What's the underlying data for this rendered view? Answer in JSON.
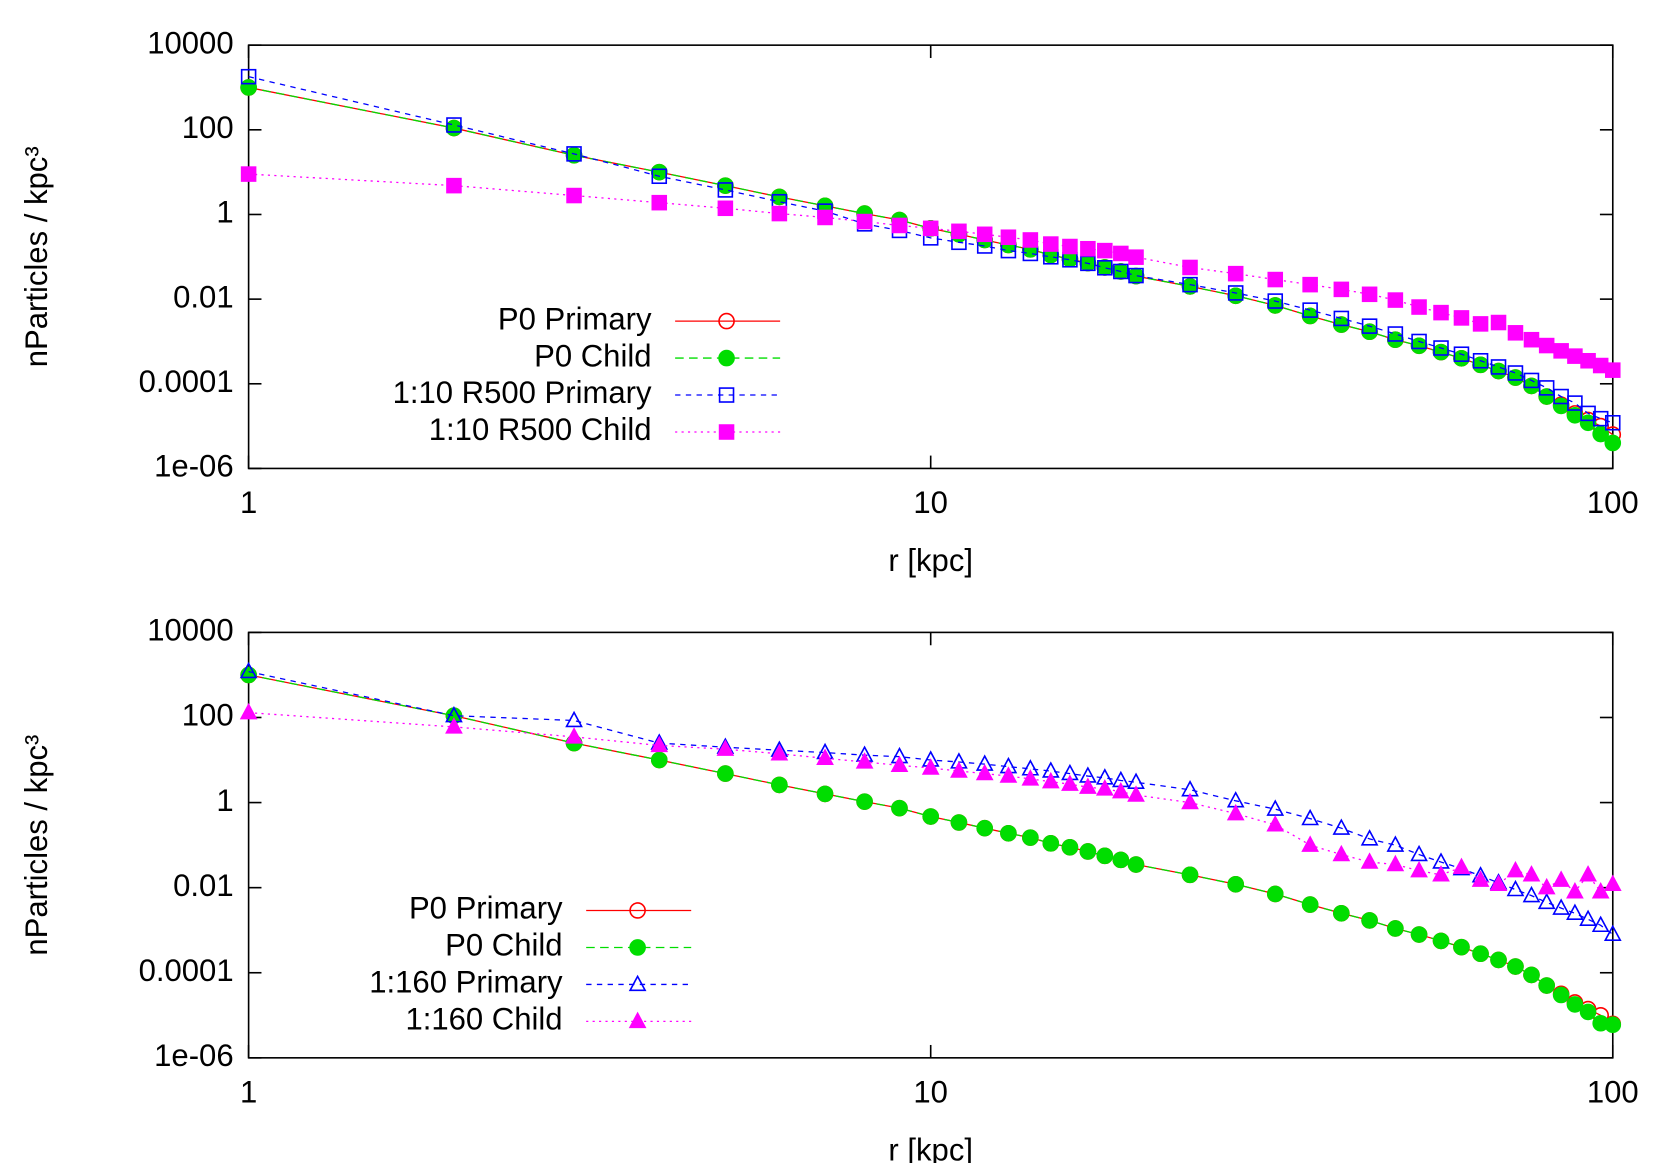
{
  "chart_data": [
    {
      "type": "line",
      "xlabel": "r [kpc]",
      "ylabel": "nParticles / kpc³",
      "xlog": true,
      "ylog": true,
      "legend": "lower left",
      "xlim": [
        1,
        100
      ],
      "xticks": [
        1,
        10,
        100
      ],
      "ylim": [
        1e-06,
        10000
      ],
      "yticks": [
        {
          "value": 1e-06,
          "label": "1e-06"
        },
        0.0001,
        0.01,
        1,
        100,
        10000
      ],
      "x": [
        1,
        2,
        3,
        4,
        5,
        6,
        7,
        8,
        9,
        10,
        11,
        12,
        13,
        14,
        15,
        16,
        17,
        18,
        19,
        20,
        24,
        28,
        32,
        36,
        40,
        44,
        48,
        52,
        56,
        60,
        64,
        68,
        72,
        76,
        80,
        84,
        88,
        92,
        96,
        100
      ],
      "series": [
        {
          "name": "P0 Primary",
          "color": "#ff0000",
          "marker": "circle-open",
          "dash": "solid",
          "values": [
            1000,
            110,
            25,
            10,
            4.8,
            2.6,
            1.6,
            1.05,
            0.74,
            0.47,
            0.34,
            0.25,
            0.19,
            0.15,
            0.11,
            0.089,
            0.071,
            0.056,
            0.045,
            0.035,
            0.02,
            0.012,
            0.0071,
            0.004,
            0.0025,
            0.0017,
            0.0011,
            0.00079,
            0.00056,
            0.0004,
            0.00028,
            0.0002,
            0.00014,
            8.9e-05,
            5e-05,
            3.2e-05,
            2e-05,
            1.4e-05,
            1e-05,
            6.3e-06
          ]
        },
        {
          "name": "P0 Child",
          "color": "#00dd00",
          "marker": "circle-filled",
          "dash": "dashed",
          "values": [
            1000,
            110,
            25,
            10,
            4.8,
            2.6,
            1.6,
            1.05,
            0.74,
            0.47,
            0.34,
            0.25,
            0.19,
            0.15,
            0.11,
            0.089,
            0.071,
            0.056,
            0.045,
            0.035,
            0.02,
            0.012,
            0.0071,
            0.004,
            0.0025,
            0.0017,
            0.0011,
            0.00079,
            0.00056,
            0.0004,
            0.00028,
            0.0002,
            0.00014,
            8.9e-05,
            5e-05,
            3e-05,
            1.8e-05,
            1.2e-05,
            6.5e-06,
            4e-06
          ]
        },
        {
          "name": "1:10 R500 Primary",
          "color": "#0000ff",
          "marker": "square-open",
          "dash": "short-dashed",
          "values": [
            1800,
            130,
            27,
            8,
            3.8,
            2,
            1.2,
            0.6,
            0.42,
            0.28,
            0.22,
            0.18,
            0.14,
            0.12,
            0.1,
            0.085,
            0.07,
            0.055,
            0.045,
            0.036,
            0.022,
            0.014,
            0.009,
            0.0055,
            0.0035,
            0.0023,
            0.0015,
            0.001,
            0.0007,
            0.0005,
            0.00035,
            0.00025,
            0.00018,
            0.00012,
            8e-05,
            5e-05,
            3.5e-05,
            2e-05,
            1.5e-05,
            1.2e-05
          ]
        },
        {
          "name": "1:10 R500 Child",
          "color": "#ff00ff",
          "marker": "square-filled",
          "dash": "dotted",
          "values": [
            9,
            4.8,
            2.8,
            1.9,
            1.4,
            1.05,
            0.85,
            0.68,
            0.55,
            0.47,
            0.4,
            0.34,
            0.29,
            0.25,
            0.2,
            0.175,
            0.155,
            0.14,
            0.12,
            0.098,
            0.056,
            0.04,
            0.029,
            0.022,
            0.017,
            0.013,
            0.0095,
            0.0065,
            0.0048,
            0.0036,
            0.0026,
            0.0028,
            0.0016,
            0.0011,
            0.0008,
            0.0006,
            0.00045,
            0.00035,
            0.00027,
            0.00021
          ]
        }
      ]
    },
    {
      "type": "line",
      "xlabel": "r [kpc]",
      "ylabel": "nParticles / kpc³",
      "xlog": true,
      "ylog": true,
      "legend": "lower left",
      "xlim": [
        1,
        100
      ],
      "xticks": [
        1,
        10,
        100
      ],
      "ylim": [
        1e-06,
        10000
      ],
      "yticks": [
        {
          "value": 1e-06,
          "label": "1e-06"
        },
        0.0001,
        0.01,
        1,
        100,
        10000
      ],
      "x": [
        1,
        2,
        3,
        4,
        5,
        6,
        7,
        8,
        9,
        10,
        11,
        12,
        13,
        14,
        15,
        16,
        17,
        18,
        19,
        20,
        24,
        28,
        32,
        36,
        40,
        44,
        48,
        52,
        56,
        60,
        64,
        68,
        72,
        76,
        80,
        84,
        88,
        92,
        96,
        100
      ],
      "series": [
        {
          "name": "P0 Primary",
          "color": "#ff0000",
          "marker": "circle-open",
          "dash": "solid",
          "values": [
            1000,
            110,
            25,
            10,
            4.8,
            2.6,
            1.6,
            1.05,
            0.74,
            0.47,
            0.34,
            0.25,
            0.19,
            0.15,
            0.11,
            0.089,
            0.071,
            0.056,
            0.045,
            0.035,
            0.02,
            0.012,
            0.0071,
            0.004,
            0.0025,
            0.0017,
            0.0011,
            0.00079,
            0.00056,
            0.0004,
            0.00028,
            0.0002,
            0.00014,
            8.9e-05,
            5e-05,
            3.2e-05,
            2e-05,
            1.4e-05,
            1e-05,
            6.3e-06
          ]
        },
        {
          "name": "P0 Child",
          "color": "#00dd00",
          "marker": "circle-filled",
          "dash": "dashed",
          "values": [
            1000,
            110,
            25,
            10,
            4.8,
            2.6,
            1.6,
            1.05,
            0.74,
            0.47,
            0.34,
            0.25,
            0.19,
            0.15,
            0.11,
            0.089,
            0.071,
            0.056,
            0.045,
            0.035,
            0.02,
            0.012,
            0.0071,
            0.004,
            0.0025,
            0.0017,
            0.0011,
            0.00079,
            0.00056,
            0.0004,
            0.00028,
            0.0002,
            0.00014,
            8.9e-05,
            5e-05,
            3e-05,
            1.8e-05,
            1.2e-05,
            6.5e-06,
            6e-06
          ]
        },
        {
          "name": "1:160 Primary",
          "color": "#0000ff",
          "marker": "triangle-open",
          "dash": "short-dashed",
          "values": [
            1200,
            110,
            85,
            25,
            20,
            17,
            15,
            13,
            12,
            10,
            9,
            8,
            7,
            6.2,
            5.5,
            4.8,
            4.2,
            3.8,
            3.3,
            3,
            2,
            1.1,
            0.7,
            0.42,
            0.25,
            0.14,
            0.1,
            0.06,
            0.04,
            0.028,
            0.019,
            0.013,
            0.009,
            0.0065,
            0.0045,
            0.0033,
            0.0025,
            0.0018,
            0.0013,
            0.0008
          ]
        },
        {
          "name": "1:160  Child",
          "color": "#ff00ff",
          "marker": "triangle-filled",
          "dash": "dotted",
          "values": [
            130,
            60,
            35,
            22,
            18,
            14,
            11,
            9,
            7.5,
            6.5,
            5.5,
            4.8,
            4.2,
            3.6,
            3.1,
            2.7,
            2.3,
            2.1,
            1.8,
            1.5,
            1,
            0.55,
            0.3,
            0.1,
            0.06,
            0.04,
            0.035,
            0.025,
            0.02,
            0.03,
            0.015,
            0.012,
            0.025,
            0.02,
            0.01,
            0.015,
            0.008,
            0.02,
            0.008,
            0.012
          ]
        }
      ]
    }
  ]
}
